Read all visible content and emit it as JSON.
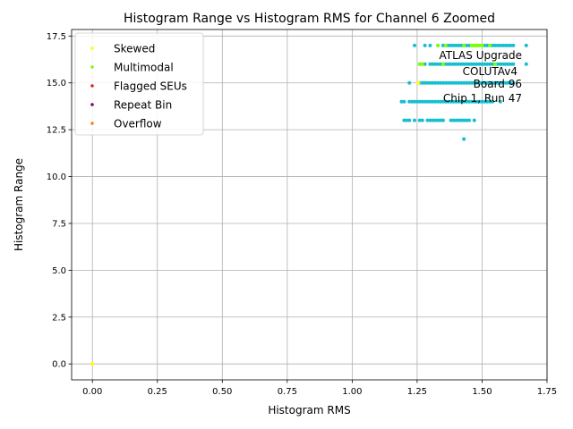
{
  "chart_data": {
    "type": "scatter",
    "title": "Histogram Range vs Histogram RMS for Channel 6 Zoomed",
    "xlabel": "Histogram RMS",
    "ylabel": "Histogram Range",
    "xlim": [
      -0.08,
      1.75
    ],
    "ylim": [
      -0.85,
      17.85
    ],
    "xticks": [
      0.0,
      0.25,
      0.5,
      0.75,
      1.0,
      1.25,
      1.5,
      1.75
    ],
    "xtick_labels": [
      "0.00",
      "0.25",
      "0.50",
      "0.75",
      "1.00",
      "1.25",
      "1.50",
      "1.75"
    ],
    "yticks": [
      0.0,
      2.5,
      5.0,
      7.5,
      10.0,
      12.5,
      15.0,
      17.5
    ],
    "ytick_labels": [
      "0.0",
      "2.5",
      "5.0",
      "7.5",
      "10.0",
      "12.5",
      "15.0",
      "17.5"
    ],
    "grid": true,
    "legend_position": "top-left",
    "annotation": [
      "ATLAS Upgrade",
      "COLUTAv4",
      "Board 96",
      "Chip 1, Run 47"
    ],
    "series": [
      {
        "name": "Skewed",
        "color": "#ffff00",
        "points": [
          [
            0.0,
            0.0
          ],
          [
            1.255,
            15.0
          ]
        ]
      },
      {
        "name": "Multimodal",
        "color": "#7fff00",
        "points": [
          [
            1.26,
            16.0
          ],
          [
            1.27,
            16.0
          ],
          [
            1.33,
            17.0
          ],
          [
            1.36,
            17.0
          ],
          [
            1.43,
            17.0
          ],
          [
            1.46,
            17.0
          ],
          [
            1.47,
            17.0
          ],
          [
            1.48,
            17.0
          ],
          [
            1.49,
            17.0
          ],
          [
            1.5,
            17.0
          ],
          [
            1.53,
            17.0
          ],
          [
            1.35,
            16.0
          ],
          [
            1.55,
            16.0
          ]
        ]
      },
      {
        "name": "Flagged SEUs",
        "color": "#d62728",
        "points": []
      },
      {
        "name": "Repeat Bin",
        "color": "#800080",
        "points": []
      },
      {
        "name": "Overflow",
        "color": "#ff7f0e",
        "points": []
      },
      {
        "name": "",
        "color": "#17becf",
        "points": [
          [
            1.24,
            17.0
          ],
          [
            1.28,
            17.0
          ],
          [
            1.3,
            17.0
          ],
          [
            1.33,
            17.0
          ],
          [
            1.35,
            17.0
          ],
          [
            1.36,
            17.0
          ],
          [
            1.37,
            17.0
          ],
          [
            1.38,
            17.0
          ],
          [
            1.39,
            17.0
          ],
          [
            1.4,
            17.0
          ],
          [
            1.41,
            17.0
          ],
          [
            1.42,
            17.0
          ],
          [
            1.43,
            17.0
          ],
          [
            1.44,
            17.0
          ],
          [
            1.45,
            17.0
          ],
          [
            1.46,
            17.0
          ],
          [
            1.47,
            17.0
          ],
          [
            1.48,
            17.0
          ],
          [
            1.49,
            17.0
          ],
          [
            1.5,
            17.0
          ],
          [
            1.51,
            17.0
          ],
          [
            1.52,
            17.0
          ],
          [
            1.53,
            17.0
          ],
          [
            1.54,
            17.0
          ],
          [
            1.55,
            17.0
          ],
          [
            1.56,
            17.0
          ],
          [
            1.57,
            17.0
          ],
          [
            1.58,
            17.0
          ],
          [
            1.59,
            17.0
          ],
          [
            1.6,
            17.0
          ],
          [
            1.61,
            17.0
          ],
          [
            1.62,
            17.0
          ],
          [
            1.67,
            17.0
          ],
          [
            1.26,
            16.0
          ],
          [
            1.28,
            16.0
          ],
          [
            1.3,
            16.0
          ],
          [
            1.31,
            16.0
          ],
          [
            1.32,
            16.0
          ],
          [
            1.33,
            16.0
          ],
          [
            1.34,
            16.0
          ],
          [
            1.35,
            16.0
          ],
          [
            1.36,
            16.0
          ],
          [
            1.37,
            16.0
          ],
          [
            1.38,
            16.0
          ],
          [
            1.39,
            16.0
          ],
          [
            1.4,
            16.0
          ],
          [
            1.41,
            16.0
          ],
          [
            1.42,
            16.0
          ],
          [
            1.43,
            16.0
          ],
          [
            1.44,
            16.0
          ],
          [
            1.45,
            16.0
          ],
          [
            1.46,
            16.0
          ],
          [
            1.47,
            16.0
          ],
          [
            1.48,
            16.0
          ],
          [
            1.49,
            16.0
          ],
          [
            1.5,
            16.0
          ],
          [
            1.51,
            16.0
          ],
          [
            1.52,
            16.0
          ],
          [
            1.53,
            16.0
          ],
          [
            1.54,
            16.0
          ],
          [
            1.55,
            16.0
          ],
          [
            1.56,
            16.0
          ],
          [
            1.57,
            16.0
          ],
          [
            1.58,
            16.0
          ],
          [
            1.59,
            16.0
          ],
          [
            1.6,
            16.0
          ],
          [
            1.61,
            16.0
          ],
          [
            1.62,
            16.0
          ],
          [
            1.67,
            16.0
          ],
          [
            1.22,
            15.0
          ],
          [
            1.26,
            15.0
          ],
          [
            1.27,
            15.0
          ],
          [
            1.28,
            15.0
          ],
          [
            1.29,
            15.0
          ],
          [
            1.3,
            15.0
          ],
          [
            1.31,
            15.0
          ],
          [
            1.32,
            15.0
          ],
          [
            1.33,
            15.0
          ],
          [
            1.34,
            15.0
          ],
          [
            1.35,
            15.0
          ],
          [
            1.36,
            15.0
          ],
          [
            1.37,
            15.0
          ],
          [
            1.38,
            15.0
          ],
          [
            1.39,
            15.0
          ],
          [
            1.4,
            15.0
          ],
          [
            1.41,
            15.0
          ],
          [
            1.42,
            15.0
          ],
          [
            1.43,
            15.0
          ],
          [
            1.44,
            15.0
          ],
          [
            1.45,
            15.0
          ],
          [
            1.46,
            15.0
          ],
          [
            1.47,
            15.0
          ],
          [
            1.48,
            15.0
          ],
          [
            1.49,
            15.0
          ],
          [
            1.5,
            15.0
          ],
          [
            1.51,
            15.0
          ],
          [
            1.52,
            15.0
          ],
          [
            1.53,
            15.0
          ],
          [
            1.54,
            15.0
          ],
          [
            1.55,
            15.0
          ],
          [
            1.56,
            15.0
          ],
          [
            1.57,
            15.0
          ],
          [
            1.58,
            15.0
          ],
          [
            1.59,
            15.0
          ],
          [
            1.6,
            15.0
          ],
          [
            1.61,
            15.0
          ],
          [
            1.62,
            15.0
          ],
          [
            1.19,
            14.0
          ],
          [
            1.2,
            14.0
          ],
          [
            1.22,
            14.0
          ],
          [
            1.23,
            14.0
          ],
          [
            1.24,
            14.0
          ],
          [
            1.25,
            14.0
          ],
          [
            1.26,
            14.0
          ],
          [
            1.27,
            14.0
          ],
          [
            1.28,
            14.0
          ],
          [
            1.29,
            14.0
          ],
          [
            1.3,
            14.0
          ],
          [
            1.31,
            14.0
          ],
          [
            1.32,
            14.0
          ],
          [
            1.33,
            14.0
          ],
          [
            1.34,
            14.0
          ],
          [
            1.35,
            14.0
          ],
          [
            1.36,
            14.0
          ],
          [
            1.37,
            14.0
          ],
          [
            1.38,
            14.0
          ],
          [
            1.39,
            14.0
          ],
          [
            1.4,
            14.0
          ],
          [
            1.41,
            14.0
          ],
          [
            1.42,
            14.0
          ],
          [
            1.43,
            14.0
          ],
          [
            1.44,
            14.0
          ],
          [
            1.45,
            14.0
          ],
          [
            1.46,
            14.0
          ],
          [
            1.47,
            14.0
          ],
          [
            1.48,
            14.0
          ],
          [
            1.49,
            14.0
          ],
          [
            1.5,
            14.0
          ],
          [
            1.51,
            14.0
          ],
          [
            1.52,
            14.0
          ],
          [
            1.53,
            14.0
          ],
          [
            1.54,
            14.0
          ],
          [
            1.57,
            14.0
          ],
          [
            1.2,
            13.0
          ],
          [
            1.21,
            13.0
          ],
          [
            1.22,
            13.0
          ],
          [
            1.24,
            13.0
          ],
          [
            1.26,
            13.0
          ],
          [
            1.27,
            13.0
          ],
          [
            1.29,
            13.0
          ],
          [
            1.3,
            13.0
          ],
          [
            1.31,
            13.0
          ],
          [
            1.32,
            13.0
          ],
          [
            1.33,
            13.0
          ],
          [
            1.34,
            13.0
          ],
          [
            1.35,
            13.0
          ],
          [
            1.38,
            13.0
          ],
          [
            1.39,
            13.0
          ],
          [
            1.4,
            13.0
          ],
          [
            1.41,
            13.0
          ],
          [
            1.42,
            13.0
          ],
          [
            1.43,
            13.0
          ],
          [
            1.44,
            13.0
          ],
          [
            1.45,
            13.0
          ],
          [
            1.47,
            13.0
          ],
          [
            1.43,
            12.0
          ]
        ]
      }
    ]
  }
}
